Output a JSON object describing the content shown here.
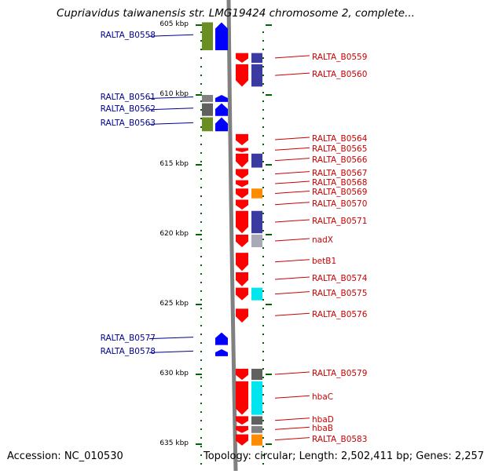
{
  "header": {
    "title": "Cupriavidus taiwanensis str. LMG19424 chromosome 2, complete..."
  },
  "footer": {
    "accession": "Accession: NC_010530",
    "topology": "Topology: circular; Length: 2,502,411 bp; Genes: 2,257"
  },
  "axis": {
    "ticks": [
      {
        "kbp": 605,
        "label": "605 kbp"
      },
      {
        "kbp": 610,
        "label": "610 kbp"
      },
      {
        "kbp": 615,
        "label": "615 kbp"
      },
      {
        "kbp": 620,
        "label": "620 kbp"
      },
      {
        "kbp": 625,
        "label": "625 kbp"
      },
      {
        "kbp": 630,
        "label": "630 kbp"
      },
      {
        "kbp": 635,
        "label": "635 kbp"
      }
    ]
  },
  "colors": {
    "forward_cds": "#0000ff",
    "reverse_cds": "#ff0000",
    "backbone": "#808080",
    "left_label": "#00008b",
    "right_label": "#cc0000",
    "tick": "#006400"
  },
  "genes_left": [
    {
      "name": "RALTA_B0558",
      "start": 604.8,
      "end": 606.8,
      "cat": "#6b8e23"
    },
    {
      "name": "RALTA_B0561",
      "start": 610.0,
      "end": 610.5,
      "cat": "#808080"
    },
    {
      "name": "RALTA_B0562",
      "start": 610.6,
      "end": 611.5,
      "cat": "#606060"
    },
    {
      "name": "RALTA_B0563",
      "start": 611.6,
      "end": 612.6,
      "cat": "#6b8e23"
    },
    {
      "name": "RALTA_B0577",
      "start": 627.0,
      "end": 627.9,
      "cat": null
    },
    {
      "name": "RALTA_B0578",
      "start": 628.2,
      "end": 628.7,
      "cat": null
    }
  ],
  "genes_right": [
    {
      "name": "RALTA_B0559",
      "start": 607.0,
      "end": 607.7,
      "cat": "#3a3aa0"
    },
    {
      "name": "RALTA_B0560",
      "start": 607.8,
      "end": 609.4,
      "cat": "#3a3aa0"
    },
    {
      "name": "RALTA_B0564",
      "start": 612.8,
      "end": 613.6,
      "cat": null
    },
    {
      "name": "RALTA_B0565",
      "start": 613.8,
      "end": 614.1,
      "cat": null
    },
    {
      "name": "RALTA_B0566",
      "start": 614.2,
      "end": 615.2,
      "cat": "#3a3aa0"
    },
    {
      "name": "RALTA_B0567",
      "start": 615.3,
      "end": 616.0,
      "cat": null
    },
    {
      "name": "RALTA_B0568",
      "start": 616.1,
      "end": 616.6,
      "cat": null
    },
    {
      "name": "RALTA_B0569",
      "start": 616.7,
      "end": 617.4,
      "cat": "#ff8c00"
    },
    {
      "name": "RALTA_B0570",
      "start": 617.5,
      "end": 618.2,
      "cat": null
    },
    {
      "name": "RALTA_B0571",
      "start": 618.3,
      "end": 619.9,
      "cat": "#3a3aa0"
    },
    {
      "name": "nadX",
      "start": 620.0,
      "end": 620.9,
      "cat": "#a9a9b8"
    },
    {
      "name": "betB1",
      "start": 621.3,
      "end": 622.6,
      "cat": null
    },
    {
      "name": "RALTA_B0574",
      "start": 622.7,
      "end": 623.7,
      "cat": null
    },
    {
      "name": "RALTA_B0575",
      "start": 623.8,
      "end": 624.7,
      "cat": "#00e5ee"
    },
    {
      "name": "RALTA_B0576",
      "start": 625.3,
      "end": 626.3,
      "cat": null
    },
    {
      "name": "RALTA_B0579",
      "start": 629.6,
      "end": 630.4,
      "cat": "#606060"
    },
    {
      "name": "hbaC",
      "start": 630.5,
      "end": 632.9,
      "cat": "#00e5ee"
    },
    {
      "name": "hbaD",
      "start": 633.0,
      "end": 633.6,
      "cat": "#606060"
    },
    {
      "name": "hbaB",
      "start": 633.7,
      "end": 634.2,
      "cat": "#808080"
    },
    {
      "name": "RALTA_B0583",
      "start": 634.3,
      "end": 635.1,
      "cat": "#ff8c00"
    }
  ]
}
